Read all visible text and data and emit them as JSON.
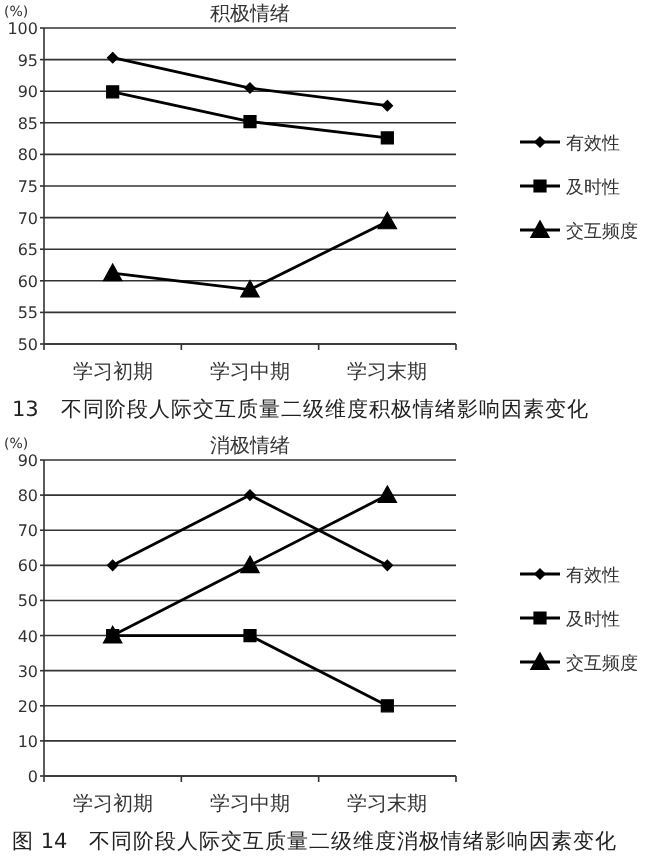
{
  "chart_data": [
    {
      "type": "line",
      "title": "积极情绪",
      "ylabel": "(%)",
      "categories": [
        "学习初期",
        "学习中期",
        "学习末期"
      ],
      "series": [
        {
          "name": "有效性",
          "color": "#000000",
          "marker": "diamond",
          "values": [
            95.3,
            90.5,
            87.7
          ]
        },
        {
          "name": "及时性",
          "color": "#000000",
          "marker": "square",
          "values": [
            89.9,
            85.2,
            82.6
          ]
        },
        {
          "name": "交互频度",
          "color": "#000000",
          "marker": "triangle",
          "values": [
            61.2,
            58.6,
            69.4
          ]
        }
      ],
      "ylim": [
        50,
        100
      ],
      "yticks": [
        50,
        55,
        60,
        65,
        70,
        75,
        80,
        85,
        90,
        95,
        100
      ],
      "grid": "y",
      "legend": "right",
      "line_style": "solid",
      "annotations": [
        "13　不同阶段人际交互质量二级维度积极情绪影响因素变化"
      ]
    },
    {
      "type": "line",
      "title": "消极情绪",
      "ylabel": "(%)",
      "categories": [
        "学习初期",
        "学习中期",
        "学习末期"
      ],
      "series": [
        {
          "name": "有效性",
          "color": "#000000",
          "marker": "diamond",
          "values": [
            60,
            80,
            60
          ]
        },
        {
          "name": "及时性",
          "color": "#000000",
          "marker": "square",
          "values": [
            40,
            40,
            20
          ]
        },
        {
          "name": "交互频度",
          "color": "#000000",
          "marker": "triangle",
          "values": [
            40,
            60,
            80
          ]
        }
      ],
      "ylim": [
        0,
        90
      ],
      "yticks": [
        0,
        10,
        20,
        30,
        40,
        50,
        60,
        70,
        80,
        90
      ],
      "grid": "y",
      "legend": "right",
      "line_style": "solid",
      "annotations": [
        "图 14　不同阶段人际交互质量二级维度消极情绪影响因素变化"
      ]
    }
  ]
}
